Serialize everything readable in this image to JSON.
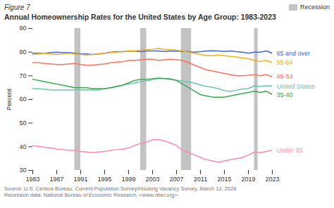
{
  "chart_data": {
    "type": "line",
    "title": "Annual Homeownership Rates for the United States by Age Group: 1983-2023",
    "annotations": [
      "Figure 7",
      "Source: U.S. Census Bureau, Current Population Survey/Housing Vacancy Survey, March 12, 2024\nRecession data: National Bureau of Economic Research, <www.nber.org>"
    ],
    "ylabel": "Percent",
    "x": [
      1983,
      1984,
      1985,
      1986,
      1987,
      1988,
      1989,
      1990,
      1991,
      1992,
      1993,
      1994,
      1995,
      1996,
      1997,
      1998,
      1999,
      2000,
      2001,
      2002,
      2003,
      2004,
      2005,
      2006,
      2007,
      2008,
      2009,
      2010,
      2011,
      2012,
      2013,
      2014,
      2015,
      2016,
      2017,
      2018,
      2019,
      2020,
      2021,
      2022,
      2023
    ],
    "series": [
      {
        "name": "65 and over",
        "label_y": 79.5,
        "values": [
          79.5,
          79.5,
          79.5,
          79.8,
          80.0,
          79.8,
          79.8,
          79.5,
          79.2,
          79.2,
          79.0,
          79.2,
          79.5,
          80.0,
          80.2,
          80.2,
          80.5,
          80.4,
          80.2,
          80.5,
          80.5,
          80.5,
          80.3,
          80.5,
          80.4,
          80.3,
          80.2,
          80.0,
          80.2,
          80.5,
          80.6,
          80.5,
          80.3,
          80.5,
          80.2,
          80.0,
          79.5,
          80.0,
          80.0,
          80.5,
          79.5
        ]
      },
      {
        "name": "55-64",
        "label_y": 75.5,
        "values": [
          79.0,
          79.2,
          79.5,
          79.2,
          79.0,
          79.2,
          79.5,
          79.2,
          79.0,
          78.8,
          79.0,
          79.2,
          79.5,
          79.8,
          80.0,
          80.2,
          80.5,
          80.5,
          80.8,
          81.0,
          81.2,
          81.5,
          81.2,
          81.0,
          80.8,
          80.5,
          80.0,
          79.5,
          79.0,
          78.5,
          78.5,
          78.8,
          78.5,
          78.2,
          78.0,
          77.5,
          77.2,
          76.5,
          76.0,
          76.5,
          75.5
        ]
      },
      {
        "name": "45-54",
        "label_y": 69.5,
        "values": [
          75.5,
          75.5,
          75.2,
          75.0,
          74.8,
          74.8,
          75.0,
          75.2,
          74.8,
          74.5,
          74.5,
          74.8,
          75.0,
          75.5,
          75.8,
          76.0,
          76.5,
          76.5,
          76.8,
          77.0,
          77.0,
          76.5,
          76.8,
          77.0,
          76.8,
          76.5,
          75.5,
          74.5,
          73.5,
          72.5,
          72.0,
          71.5,
          71.0,
          70.5,
          70.0,
          70.0,
          70.2,
          70.5,
          70.0,
          70.5,
          69.5
        ]
      },
      {
        "name": "United States",
        "label_y": 65.5,
        "values": [
          64.5,
          64.5,
          64.3,
          64.0,
          64.0,
          64.0,
          64.0,
          64.0,
          64.0,
          64.0,
          64.0,
          64.0,
          64.5,
          65.0,
          65.5,
          66.0,
          66.5,
          67.0,
          67.5,
          67.9,
          68.3,
          69.0,
          68.9,
          68.8,
          68.1,
          67.8,
          67.4,
          66.9,
          66.1,
          65.5,
          65.1,
          64.5,
          63.7,
          63.4,
          63.9,
          64.4,
          64.6,
          65.8,
          65.5,
          65.8,
          65.7
        ]
      },
      {
        "name": "35-40",
        "label_y": 62.0,
        "values": [
          68.5,
          68.0,
          67.5,
          67.0,
          66.5,
          66.0,
          65.5,
          65.0,
          65.0,
          65.0,
          64.5,
          64.5,
          64.5,
          65.0,
          65.5,
          66.0,
          67.0,
          68.0,
          68.5,
          68.5,
          68.8,
          69.0,
          68.8,
          68.5,
          68.0,
          66.5,
          65.0,
          63.5,
          62.0,
          61.5,
          61.0,
          61.0,
          61.0,
          61.5,
          62.0,
          62.5,
          63.0,
          63.5,
          63.0,
          63.5,
          62.0
        ]
      },
      {
        "name": "Under 35",
        "label_y": 38.5,
        "values": [
          40.5,
          40.2,
          39.8,
          39.5,
          39.0,
          38.8,
          38.5,
          38.5,
          38.0,
          37.8,
          37.5,
          37.8,
          38.0,
          38.5,
          38.8,
          39.0,
          39.5,
          40.5,
          41.5,
          42.0,
          43.0,
          43.0,
          42.5,
          41.5,
          40.5,
          38.5,
          37.5,
          36.5,
          35.5,
          34.5,
          34.0,
          33.5,
          34.0,
          34.5,
          35.0,
          35.5,
          36.5,
          37.8,
          37.5,
          38.0,
          38.5
        ]
      }
    ],
    "bands": {
      "name": "Recession",
      "color": "#888888",
      "periods": [
        [
          1990,
          1991
        ],
        [
          2001,
          2002
        ],
        [
          2007.8,
          2009.5
        ],
        [
          2020,
          2020.6
        ]
      ]
    },
    "xlim": [
      1983,
      2023
    ],
    "ylim": [
      30,
      90
    ],
    "xticks": [
      1983,
      1987,
      1991,
      1995,
      1999,
      2003,
      2007,
      2011,
      2015,
      2019,
      2023
    ],
    "yticks": [
      30,
      40,
      50,
      60,
      70,
      80,
      90
    ],
    "grid": false,
    "legend": "upper right"
  }
}
